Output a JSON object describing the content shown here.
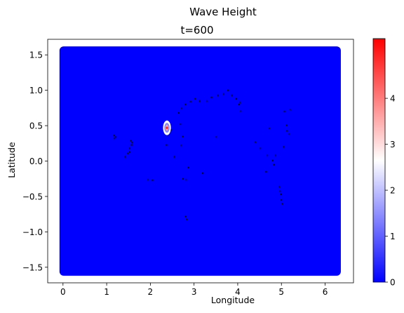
{
  "figure": {
    "suptitle": "Wave Height",
    "title": "t=600"
  },
  "chart_data": {
    "type": "heatmap",
    "title": "t=600",
    "suptitle": "Wave Height",
    "xlabel": "Longitude",
    "ylabel": "Latitude",
    "xlim": [
      -0.35,
      6.65
    ],
    "ylim": [
      -1.72,
      1.72
    ],
    "x_ticks": [
      0,
      1,
      2,
      3,
      4,
      5,
      6
    ],
    "y_ticks": [
      -1.5,
      -1.0,
      -0.5,
      0.0,
      0.5,
      1.0,
      1.5
    ],
    "x_tick_labels": [
      "0",
      "1",
      "2",
      "3",
      "4",
      "5",
      "6"
    ],
    "y_tick_labels": [
      "−1.5",
      "−1.0",
      "−0.5",
      "0.0",
      "0.5",
      "1.0",
      "1.5"
    ],
    "field_extent": {
      "x": [
        0.0,
        6.28
      ],
      "y": [
        -1.57,
        1.57
      ]
    },
    "background_value": 0,
    "colormap": {
      "name": "bwr",
      "low": "#0000ff",
      "mid": "#ffffff",
      "high": "#ff0000"
    },
    "colorbar": {
      "vmin": 0,
      "vmax": 5.3,
      "ticks": [
        0,
        1,
        2,
        3,
        4
      ],
      "tick_labels": [
        "0",
        "1",
        "2",
        "3",
        "4"
      ]
    },
    "wave_source": {
      "x": 2.38,
      "y": 0.47,
      "peak_value": 5.0
    },
    "wave_rings": [
      {
        "radius": 0.09,
        "value": 2.6
      },
      {
        "radius": 0.06,
        "value": 1.4
      },
      {
        "radius": 0.035,
        "value": 3.6
      },
      {
        "radius": 0.015,
        "value": 4.8
      }
    ],
    "station_markers": [
      [
        1.17,
        0.36
      ],
      [
        1.18,
        0.32
      ],
      [
        1.21,
        0.34
      ],
      [
        1.42,
        0.06
      ],
      [
        1.48,
        0.11
      ],
      [
        1.53,
        0.13
      ],
      [
        1.53,
        0.18
      ],
      [
        1.55,
        0.29
      ],
      [
        1.57,
        0.23
      ],
      [
        1.58,
        0.26
      ],
      [
        1.95,
        -0.26
      ],
      [
        2.05,
        -0.27
      ],
      [
        2.37,
        0.23
      ],
      [
        2.47,
        0.44
      ],
      [
        2.55,
        0.06
      ],
      [
        2.65,
        0.68
      ],
      [
        2.69,
        0.52
      ],
      [
        2.7,
        0.22
      ],
      [
        2.72,
        0.75
      ],
      [
        2.74,
        0.35
      ],
      [
        2.75,
        -0.25
      ],
      [
        2.82,
        -0.26
      ],
      [
        2.8,
        0.8
      ],
      [
        2.81,
        -0.78
      ],
      [
        2.83,
        -0.82
      ],
      [
        2.87,
        -0.09
      ],
      [
        2.92,
        0.84
      ],
      [
        3.02,
        0.88
      ],
      [
        3.13,
        0.85
      ],
      [
        3.2,
        -0.17
      ],
      [
        3.3,
        0.85
      ],
      [
        3.4,
        0.9
      ],
      [
        3.5,
        0.34
      ],
      [
        3.55,
        0.93
      ],
      [
        3.68,
        0.95
      ],
      [
        3.78,
        1.0
      ],
      [
        3.87,
        0.93
      ],
      [
        3.97,
        0.88
      ],
      [
        4.03,
        0.8
      ],
      [
        4.05,
        0.83
      ],
      [
        4.07,
        0.71
      ],
      [
        4.4,
        0.27
      ],
      [
        4.52,
        0.18
      ],
      [
        4.65,
        -0.15
      ],
      [
        4.68,
        0.08
      ],
      [
        4.72,
        0.46
      ],
      [
        4.8,
        0.01
      ],
      [
        4.83,
        -0.05
      ],
      [
        4.87,
        0.08
      ],
      [
        4.95,
        -0.36
      ],
      [
        4.97,
        -0.42
      ],
      [
        4.99,
        -0.47
      ],
      [
        5.0,
        -0.55
      ],
      [
        5.02,
        -0.6
      ],
      [
        5.05,
        0.2
      ],
      [
        5.07,
        0.7
      ],
      [
        5.12,
        0.51
      ],
      [
        5.13,
        0.43
      ],
      [
        5.17,
        0.38
      ],
      [
        5.2,
        0.73
      ]
    ],
    "grid": false,
    "legend": "none"
  }
}
